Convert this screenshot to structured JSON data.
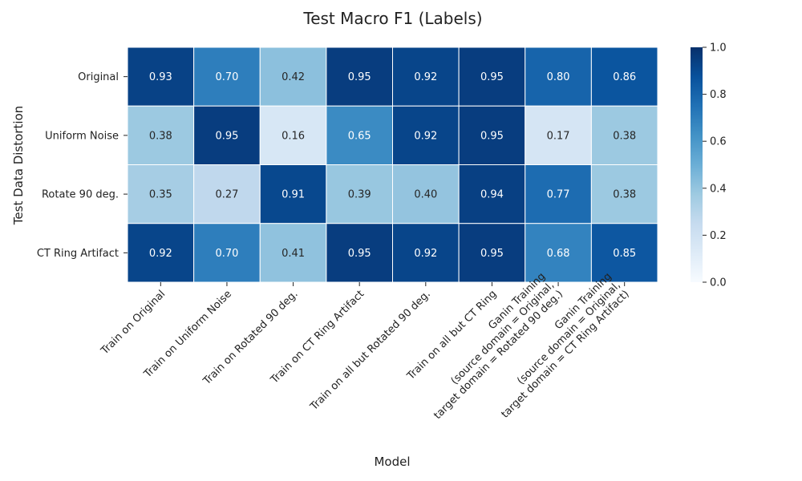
{
  "chart_data": {
    "type": "heatmap",
    "title": "Test Macro F1 (Labels)",
    "xlabel": "Model",
    "ylabel": "Test Data Distortion",
    "rows": [
      "Original",
      "Uniform Noise",
      "Rotate 90 deg.",
      "CT Ring Artifact"
    ],
    "columns": [
      [
        "Train on Original"
      ],
      [
        "Train on Uniform Noise"
      ],
      [
        "Train on Rotated 90 deg."
      ],
      [
        "Train on CT Ring Artifact"
      ],
      [
        "Train on all but Rotated 90 deg."
      ],
      [
        "Train on all but CT Ring"
      ],
      [
        "Ganin Training",
        "(source domain = Original,",
        "target domain = Rotated 90 deg.)"
      ],
      [
        "Ganin Training",
        "(source domain = Original,",
        "target domain = CT Ring Artifact)"
      ]
    ],
    "values": [
      [
        0.93,
        0.7,
        0.42,
        0.95,
        0.92,
        0.95,
        0.8,
        0.86
      ],
      [
        0.38,
        0.95,
        0.16,
        0.65,
        0.92,
        0.95,
        0.17,
        0.38
      ],
      [
        0.35,
        0.27,
        0.91,
        0.39,
        0.4,
        0.94,
        0.77,
        0.38
      ],
      [
        0.92,
        0.7,
        0.41,
        0.95,
        0.92,
        0.95,
        0.68,
        0.85
      ]
    ],
    "value_labels": [
      [
        "0.93",
        "0.70",
        "0.42",
        "0.95",
        "0.92",
        "0.95",
        "0.80",
        "0.86"
      ],
      [
        "0.38",
        "0.95",
        "0.16",
        "0.65",
        "0.92",
        "0.95",
        "0.17",
        "0.38"
      ],
      [
        "0.35",
        "0.27",
        "0.91",
        "0.39",
        "0.40",
        "0.94",
        "0.77",
        "0.38"
      ],
      [
        "0.92",
        "0.70",
        "0.41",
        "0.95",
        "0.92",
        "0.95",
        "0.68",
        "0.85"
      ]
    ],
    "vmin": 0.0,
    "vmax": 1.0,
    "colormap": "Blues",
    "colorbar_ticks": [
      "0.0",
      "0.2",
      "0.4",
      "0.6",
      "0.8",
      "1.0"
    ],
    "grid": true
  }
}
